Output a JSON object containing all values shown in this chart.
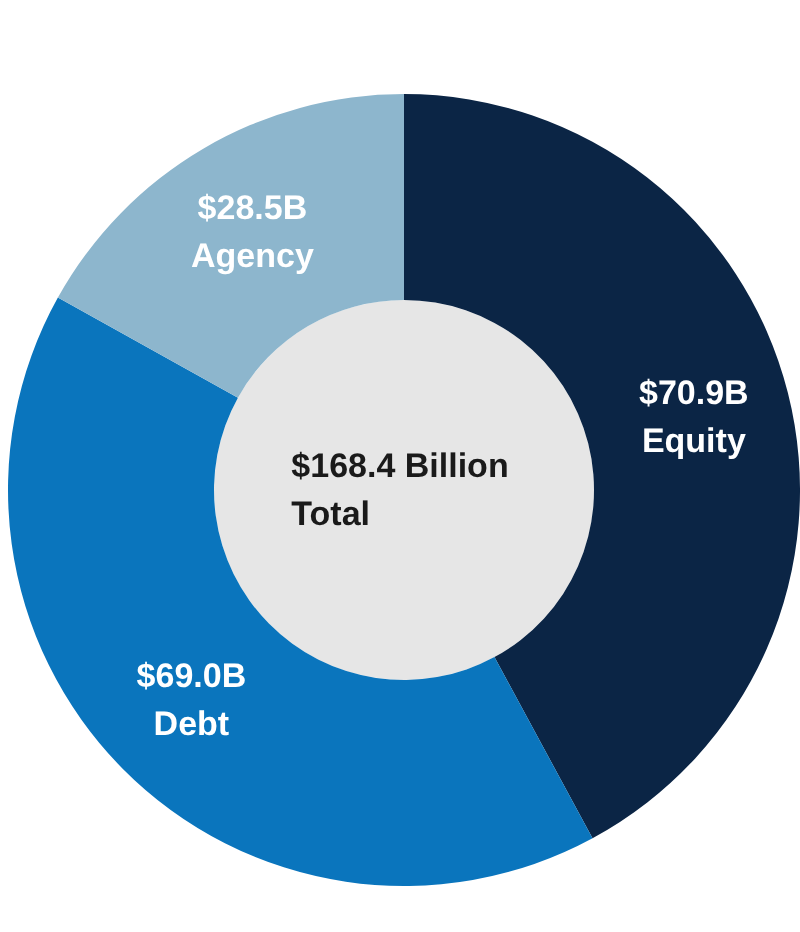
{
  "chart_data": {
    "type": "donut",
    "categories": [
      "Equity",
      "Debt",
      "Agency"
    ],
    "values": [
      70.9,
      69.0,
      28.5
    ],
    "colors": [
      "#0b2545",
      "#0a75bd",
      "#8db6cd"
    ],
    "value_labels": [
      "$70.9B",
      "$69.0B",
      "$28.5B"
    ],
    "annotations": [
      "$168.4 Billion",
      "Total"
    ]
  }
}
